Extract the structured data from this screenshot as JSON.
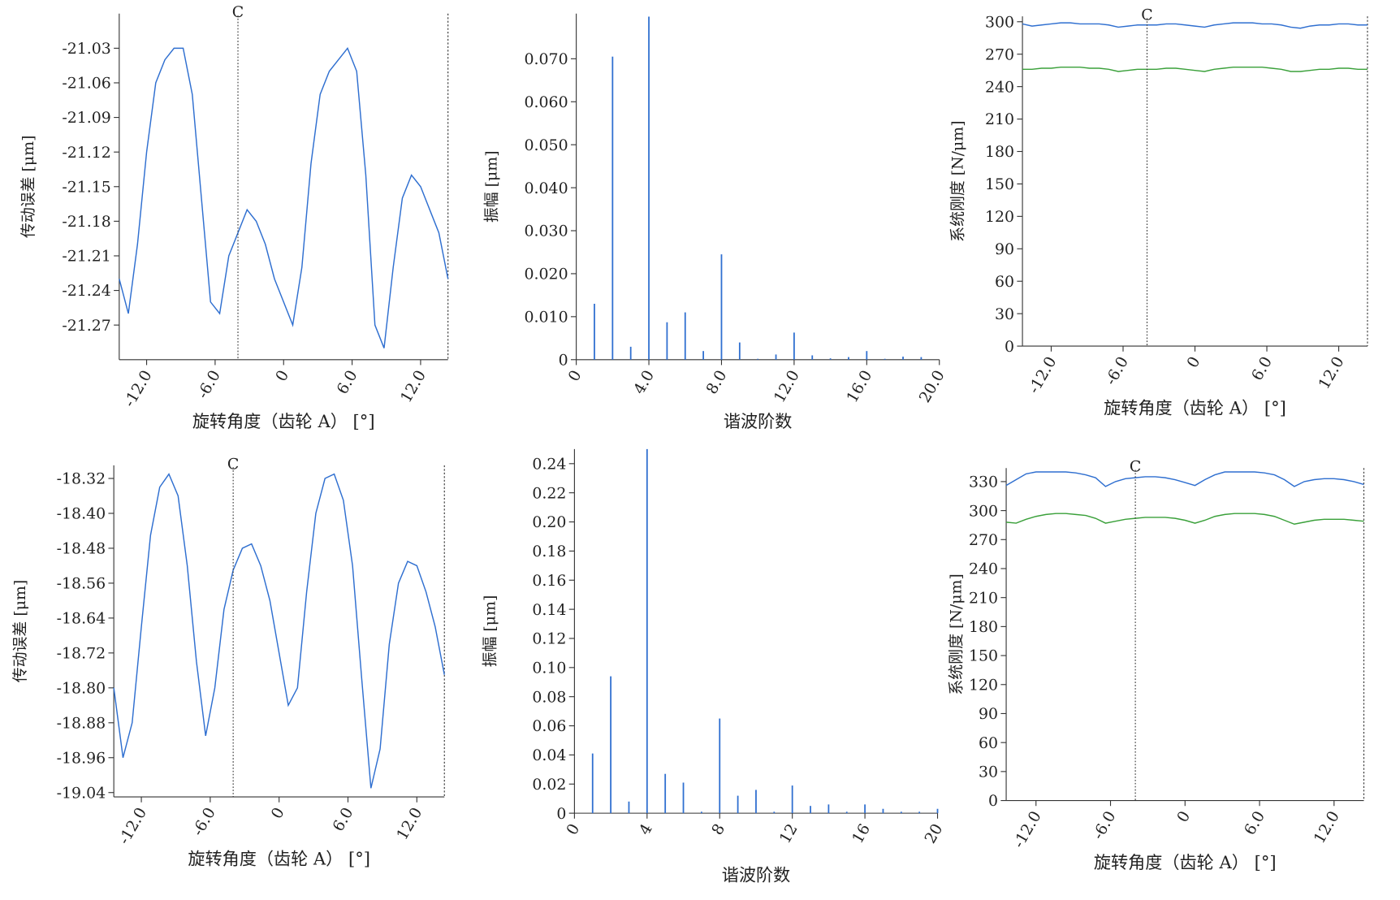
{
  "chart_data": [
    {
      "type": "line",
      "ylabel": "传动误差 [μm]",
      "xlabel": "旋转角度（齿轮 A） [°]",
      "x": [
        -14.4,
        -13.6,
        -12.8,
        -12.0,
        -11.2,
        -10.4,
        -9.6,
        -8.8,
        -8.0,
        -7.2,
        -6.4,
        -5.6,
        -4.8,
        -4.0,
        -3.2,
        -2.4,
        -1.6,
        -0.8,
        0,
        0.8,
        1.6,
        2.4,
        3.2,
        4.0,
        4.8,
        5.6,
        6.4,
        7.2,
        8.0,
        8.8,
        9.6,
        10.4,
        11.2,
        12.0,
        12.8,
        13.6,
        14.4
      ],
      "series": [
        {
          "color": "#2f6fd0",
          "values": [
            -21.23,
            -21.26,
            -21.2,
            -21.12,
            -21.06,
            -21.04,
            -21.03,
            -21.03,
            -21.07,
            -21.16,
            -21.25,
            -21.26,
            -21.21,
            -21.19,
            -21.17,
            -21.18,
            -21.2,
            -21.23,
            -21.25,
            -21.27,
            -21.22,
            -21.13,
            -21.07,
            -21.05,
            -21.04,
            -21.03,
            -21.05,
            -21.14,
            -21.27,
            -21.29,
            -21.22,
            -21.16,
            -21.14,
            -21.15,
            -21.17,
            -21.19,
            -21.23
          ]
        }
      ],
      "marker": {
        "x": -4.0,
        "label": "C"
      },
      "xlim": [
        -14.4,
        14.4
      ],
      "xticks": [
        {
          "value": -12,
          "label": "-12.0"
        },
        {
          "value": -6,
          "label": "-6.0"
        },
        0,
        {
          "value": 6,
          "label": "6.0"
        },
        {
          "value": 12,
          "label": "12.0"
        }
      ],
      "ylim": [
        -21.3,
        -21.0
      ],
      "yticks": [
        -21.03,
        -21.06,
        -21.09,
        -21.12,
        -21.15,
        -21.18,
        -21.21,
        -21.24,
        -21.27
      ]
    },
    {
      "type": "bar",
      "ylabel": "振幅 [μm]",
      "xlabel": "谐波阶数",
      "color": "#2f6fd0",
      "x": [
        1,
        2,
        3,
        4,
        5,
        6,
        7,
        8,
        9,
        10,
        11,
        12,
        13,
        14,
        15,
        16,
        17,
        18,
        19
      ],
      "values": [
        0.013,
        0.0705,
        0.003,
        0.0798,
        0.0087,
        0.011,
        0.002,
        0.0245,
        0.004,
        0.0002,
        0.0012,
        0.0063,
        0.001,
        0.0003,
        0.0006,
        0.002,
        0.0002,
        0.0007,
        0.0006
      ],
      "xlim": [
        0,
        20
      ],
      "xticks": [
        0,
        {
          "value": 4,
          "label": "4.0"
        },
        {
          "value": 8,
          "label": "8.0"
        },
        {
          "value": 12,
          "label": "12.0"
        },
        {
          "value": 16,
          "label": "16.0"
        },
        {
          "value": 20,
          "label": "20.0"
        }
      ],
      "ylim": [
        0,
        0.0805
      ],
      "yticks": [
        0,
        {
          "value": 0.01,
          "label": "0.010"
        },
        {
          "value": 0.02,
          "label": "0.020"
        },
        {
          "value": 0.03,
          "label": "0.030"
        },
        {
          "value": 0.04,
          "label": "0.040"
        },
        {
          "value": 0.05,
          "label": "0.050"
        },
        {
          "value": 0.06,
          "label": "0.060"
        },
        {
          "value": 0.07,
          "label": "0.070"
        }
      ]
    },
    {
      "type": "line",
      "ylabel": "系统刚度 [N/μm]",
      "xlabel": "旋转角度（齿轮 A） [°]",
      "x": [
        -14.4,
        -13.6,
        -12.8,
        -12.0,
        -11.2,
        -10.4,
        -9.6,
        -8.8,
        -8.0,
        -7.2,
        -6.4,
        -5.6,
        -4.8,
        -4.0,
        -3.2,
        -2.4,
        -1.6,
        -0.8,
        0,
        0.8,
        1.6,
        2.4,
        3.2,
        4.0,
        4.8,
        5.6,
        6.4,
        7.2,
        8.0,
        8.8,
        9.6,
        10.4,
        11.2,
        12.0,
        12.8,
        13.6,
        14.4
      ],
      "series": [
        {
          "color": "#2f6fd0",
          "values": [
            298,
            296,
            297,
            298,
            299,
            299,
            298,
            298,
            298,
            297,
            295,
            296,
            297,
            297,
            297,
            298,
            298,
            297,
            296,
            295,
            297,
            298,
            299,
            299,
            299,
            298,
            298,
            297,
            295,
            294,
            296,
            297,
            297,
            298,
            298,
            297,
            297
          ]
        },
        {
          "color": "#3aa03a",
          "values": [
            256,
            256,
            257,
            257,
            258,
            258,
            258,
            257,
            257,
            256,
            254,
            255,
            256,
            256,
            256,
            257,
            257,
            256,
            255,
            254,
            256,
            257,
            258,
            258,
            258,
            258,
            257,
            256,
            254,
            254,
            255,
            256,
            256,
            257,
            257,
            256,
            256
          ]
        }
      ],
      "marker": {
        "x": -4.0,
        "label": "C"
      },
      "xlim": [
        -14.4,
        14.4
      ],
      "xticks": [
        {
          "value": -12,
          "label": "-12.0"
        },
        {
          "value": -6,
          "label": "-6.0"
        },
        0,
        {
          "value": 6,
          "label": "6.0"
        },
        {
          "value": 12,
          "label": "12.0"
        }
      ],
      "ylim": [
        0,
        305
      ],
      "yticks": [
        0,
        30,
        60,
        90,
        120,
        150,
        180,
        210,
        240,
        270,
        300
      ]
    },
    {
      "type": "line",
      "ylabel": "传动误差 [μm]",
      "xlabel": "旋转角度（齿轮 A） [°]",
      "x": [
        -14.4,
        -13.6,
        -12.8,
        -12.0,
        -11.2,
        -10.4,
        -9.6,
        -8.8,
        -8.0,
        -7.2,
        -6.4,
        -5.6,
        -4.8,
        -4.0,
        -3.2,
        -2.4,
        -1.6,
        -0.8,
        0,
        0.8,
        1.6,
        2.4,
        3.2,
        4.0,
        4.8,
        5.6,
        6.4,
        7.2,
        8.0,
        8.8,
        9.6,
        10.4,
        11.2,
        12.0,
        12.8,
        13.6,
        14.4
      ],
      "series": [
        {
          "color": "#2f6fd0",
          "values": [
            -18.8,
            -18.96,
            -18.88,
            -18.66,
            -18.45,
            -18.34,
            -18.31,
            -18.36,
            -18.52,
            -18.74,
            -18.91,
            -18.8,
            -18.62,
            -18.53,
            -18.48,
            -18.47,
            -18.52,
            -18.6,
            -18.72,
            -18.84,
            -18.8,
            -18.58,
            -18.4,
            -18.32,
            -18.31,
            -18.37,
            -18.52,
            -18.78,
            -19.03,
            -18.94,
            -18.7,
            -18.56,
            -18.51,
            -18.52,
            -18.58,
            -18.66,
            -18.77
          ]
        }
      ],
      "marker": {
        "x": -4.0,
        "label": "C"
      },
      "xlim": [
        -14.4,
        14.4
      ],
      "xticks": [
        {
          "value": -12,
          "label": "-12.0"
        },
        {
          "value": -6,
          "label": "-6.0"
        },
        0,
        {
          "value": 6,
          "label": "6.0"
        },
        {
          "value": 12,
          "label": "12.0"
        }
      ],
      "ylim": [
        -19.05,
        -18.29
      ],
      "yticks": [
        -18.32,
        {
          "value": -18.4,
          "label": "-18.40"
        },
        -18.48,
        -18.56,
        -18.64,
        -18.72,
        {
          "value": -18.8,
          "label": "-18.80"
        },
        -18.88,
        -18.96,
        -19.04
      ]
    },
    {
      "type": "bar",
      "ylabel": "振幅 [μm]",
      "xlabel": "谐波阶数",
      "color": "#2f6fd0",
      "x": [
        1,
        2,
        3,
        4,
        5,
        6,
        7,
        8,
        9,
        10,
        11,
        12,
        13,
        14,
        15,
        16,
        17,
        18,
        19,
        20
      ],
      "values": [
        0.041,
        0.094,
        0.008,
        0.25,
        0.027,
        0.021,
        0.001,
        0.065,
        0.012,
        0.016,
        0.001,
        0.019,
        0.005,
        0.006,
        0.001,
        0.006,
        0.003,
        0.001,
        0.001,
        0.003
      ],
      "xlim": [
        0,
        20
      ],
      "xticks": [
        0,
        4,
        8,
        12,
        16,
        20
      ],
      "ylim": [
        0,
        0.25
      ],
      "yticks": [
        0,
        0.02,
        0.04,
        0.06,
        0.08,
        {
          "value": 0.1,
          "label": "0.10"
        },
        0.12,
        0.14,
        0.16,
        0.18,
        {
          "value": 0.2,
          "label": "0.20"
        },
        0.22,
        0.24
      ]
    },
    {
      "type": "line",
      "ylabel": "系统刚度 [N/μm]",
      "xlabel": "旋转角度（齿轮 A） [°]",
      "x": [
        -14.4,
        -13.6,
        -12.8,
        -12.0,
        -11.2,
        -10.4,
        -9.6,
        -8.8,
        -8.0,
        -7.2,
        -6.4,
        -5.6,
        -4.8,
        -4.0,
        -3.2,
        -2.4,
        -1.6,
        -0.8,
        0,
        0.8,
        1.6,
        2.4,
        3.2,
        4.0,
        4.8,
        5.6,
        6.4,
        7.2,
        8.0,
        8.8,
        9.6,
        10.4,
        11.2,
        12.0,
        12.8,
        13.6,
        14.4
      ],
      "series": [
        {
          "color": "#2f6fd0",
          "values": [
            326,
            332,
            338,
            340,
            340,
            340,
            340,
            339,
            337,
            334,
            325,
            330,
            333,
            334,
            335,
            335,
            334,
            332,
            329,
            326,
            332,
            337,
            340,
            340,
            340,
            340,
            339,
            337,
            332,
            325,
            330,
            332,
            333,
            333,
            332,
            330,
            327
          ]
        },
        {
          "color": "#3aa03a",
          "values": [
            288,
            287,
            291,
            294,
            296,
            297,
            297,
            296,
            295,
            292,
            287,
            289,
            291,
            292,
            293,
            293,
            293,
            292,
            290,
            287,
            290,
            294,
            296,
            297,
            297,
            297,
            296,
            294,
            290,
            286,
            288,
            290,
            291,
            291,
            291,
            290,
            289
          ]
        }
      ],
      "marker": {
        "x": -4.0,
        "label": "C"
      },
      "xlim": [
        -14.4,
        14.4
      ],
      "xticks": [
        {
          "value": -12,
          "label": "-12.0"
        },
        {
          "value": -6,
          "label": "-6.0"
        },
        0,
        {
          "value": 6,
          "label": "6.0"
        },
        {
          "value": 12,
          "label": "12.0"
        }
      ],
      "ylim": [
        0,
        344
      ],
      "yticks": [
        0,
        30,
        60,
        90,
        120,
        150,
        180,
        210,
        240,
        270,
        300,
        330
      ]
    }
  ]
}
